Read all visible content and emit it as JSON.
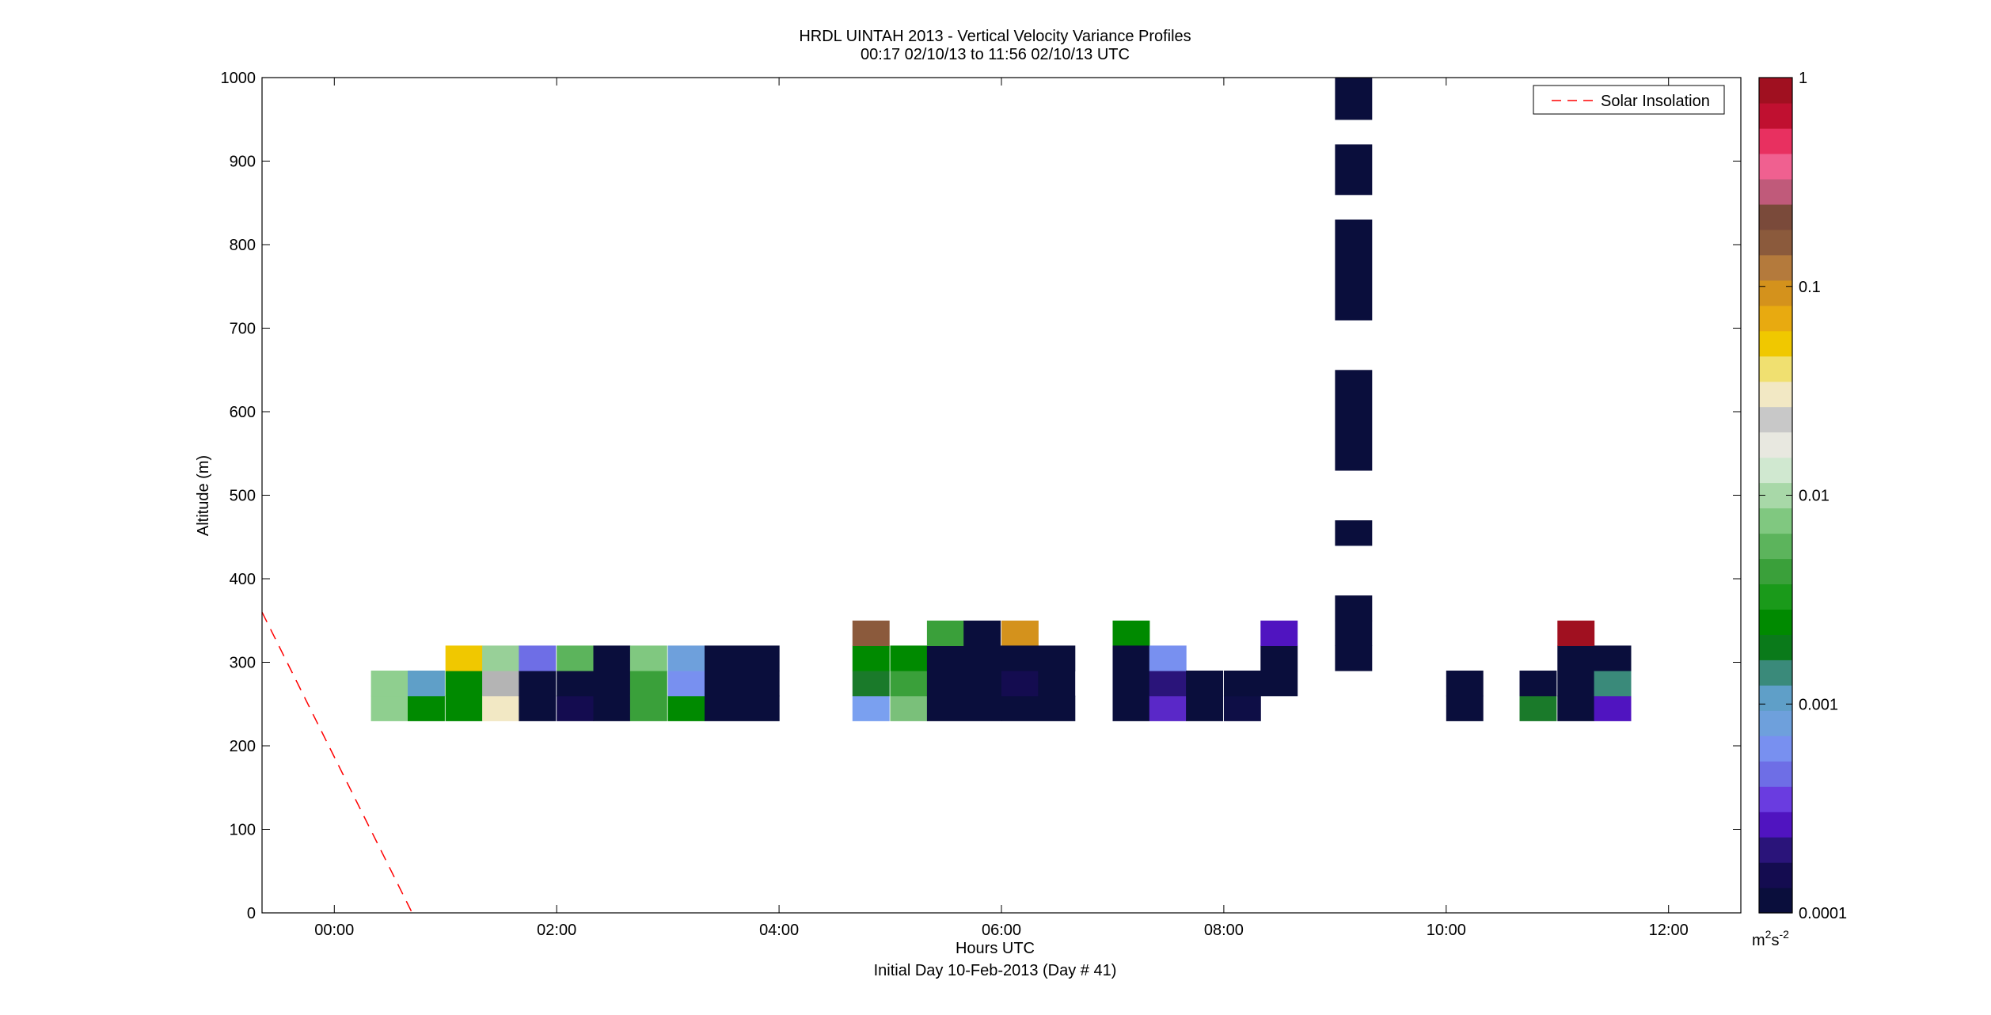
{
  "chart_data": {
    "type": "heatmap",
    "title": "HRDL UINTAH 2013 - Vertical Velocity Variance Profiles",
    "subtitle": "00:17 02/10/13 to 11:56 02/10/13  UTC",
    "xlabel": "Hours UTC",
    "xlabel2": "Initial Day 10-Feb-2013 (Day # 41)",
    "ylabel": "Altitude (m)",
    "xlim": [
      -0.65,
      12.65
    ],
    "ylim": [
      0,
      1000
    ],
    "x_ticks": [
      0,
      2,
      4,
      6,
      8,
      10,
      12
    ],
    "x_tick_labels": [
      "00:00",
      "02:00",
      "04:00",
      "06:00",
      "08:00",
      "10:00",
      "12:00"
    ],
    "y_ticks": [
      0,
      100,
      200,
      300,
      400,
      500,
      600,
      700,
      800,
      900,
      1000
    ],
    "y_tick_labels": [
      "0",
      "100",
      "200",
      "300",
      "400",
      "500",
      "600",
      "700",
      "800",
      "900",
      "1000"
    ],
    "colorbar": {
      "scale": "log",
      "range": [
        0.0001,
        1
      ],
      "ticks": [
        0.0001,
        0.001,
        0.01,
        0.1,
        1
      ],
      "tick_labels": [
        "0.0001",
        "0.001",
        "0.01",
        "0.1",
        "1"
      ],
      "units_main": "m",
      "units_sup1": "2",
      "units_mid": "s",
      "units_sup2": "-2"
    },
    "legend": {
      "position": "top-right",
      "entries": [
        {
          "label": "Solar Insolation",
          "color": "#ff0000",
          "style": "dashed"
        }
      ]
    },
    "solar_insolation_line": {
      "x": [
        -0.65,
        0.7
      ],
      "y": [
        360,
        0
      ]
    },
    "cell_height_m": 30,
    "cells": [
      {
        "x": 0.33,
        "y": 230,
        "w": 0.33,
        "color": "#8fcf8f"
      },
      {
        "x": 0.33,
        "y": 260,
        "w": 0.33,
        "color": "#8fcf8f"
      },
      {
        "x": 0.66,
        "y": 230,
        "w": 0.33,
        "color": "#008a00"
      },
      {
        "x": 0.66,
        "y": 260,
        "w": 0.33,
        "color": "#5f9fc8"
      },
      {
        "x": 1.0,
        "y": 230,
        "w": 0.33,
        "color": "#008a00"
      },
      {
        "x": 1.0,
        "y": 260,
        "w": 0.33,
        "color": "#008a00"
      },
      {
        "x": 1.0,
        "y": 290,
        "w": 0.33,
        "color": "#f0c800"
      },
      {
        "x": 1.33,
        "y": 230,
        "w": 0.33,
        "color": "#f2e8c4"
      },
      {
        "x": 1.33,
        "y": 260,
        "w": 0.33,
        "color": "#b4b4b4"
      },
      {
        "x": 1.33,
        "y": 290,
        "w": 0.33,
        "color": "#98d098"
      },
      {
        "x": 1.66,
        "y": 230,
        "w": 0.33,
        "color": "#0a0e3c"
      },
      {
        "x": 1.66,
        "y": 260,
        "w": 0.33,
        "color": "#0a0e3c"
      },
      {
        "x": 1.66,
        "y": 290,
        "w": 0.33,
        "color": "#6e6ee6"
      },
      {
        "x": 2.0,
        "y": 230,
        "w": 0.33,
        "color": "#140c50"
      },
      {
        "x": 2.0,
        "y": 260,
        "w": 0.33,
        "color": "#0a0e3c"
      },
      {
        "x": 2.0,
        "y": 290,
        "w": 0.33,
        "color": "#5cb45c"
      },
      {
        "x": 2.33,
        "y": 230,
        "w": 0.33,
        "color": "#0a0e3c"
      },
      {
        "x": 2.33,
        "y": 260,
        "w": 0.33,
        "color": "#0a0e3c"
      },
      {
        "x": 2.33,
        "y": 290,
        "w": 0.33,
        "color": "#0a0e3c"
      },
      {
        "x": 2.66,
        "y": 230,
        "w": 0.33,
        "color": "#3aa03a"
      },
      {
        "x": 2.66,
        "y": 260,
        "w": 0.33,
        "color": "#3aa03a"
      },
      {
        "x": 2.66,
        "y": 290,
        "w": 0.33,
        "color": "#80c880"
      },
      {
        "x": 3.0,
        "y": 230,
        "w": 0.33,
        "color": "#008a00"
      },
      {
        "x": 3.0,
        "y": 260,
        "w": 0.33,
        "color": "#7890f0"
      },
      {
        "x": 3.0,
        "y": 290,
        "w": 0.33,
        "color": "#6ea0dc"
      },
      {
        "x": 3.33,
        "y": 230,
        "w": 0.67,
        "color": "#0a0e3c"
      },
      {
        "x": 3.33,
        "y": 260,
        "w": 0.67,
        "color": "#0a0e3c"
      },
      {
        "x": 3.33,
        "y": 290,
        "w": 0.67,
        "color": "#0a0e3c"
      },
      {
        "x": 4.66,
        "y": 230,
        "w": 0.33,
        "color": "#7aa0f0"
      },
      {
        "x": 4.66,
        "y": 260,
        "w": 0.33,
        "color": "#1a7a2a"
      },
      {
        "x": 4.66,
        "y": 290,
        "w": 0.33,
        "color": "#008a00"
      },
      {
        "x": 4.66,
        "y": 320,
        "w": 0.33,
        "color": "#8b5a3c"
      },
      {
        "x": 5.0,
        "y": 230,
        "w": 0.33,
        "color": "#7ac07a"
      },
      {
        "x": 5.0,
        "y": 260,
        "w": 0.33,
        "color": "#3aa03a"
      },
      {
        "x": 5.0,
        "y": 290,
        "w": 0.33,
        "color": "#008a00"
      },
      {
        "x": 5.33,
        "y": 230,
        "w": 0.67,
        "color": "#0a0e3c"
      },
      {
        "x": 5.33,
        "y": 260,
        "w": 0.67,
        "color": "#0a0e3c"
      },
      {
        "x": 5.33,
        "y": 290,
        "w": 0.67,
        "color": "#0a0e3c"
      },
      {
        "x": 5.33,
        "y": 320,
        "w": 0.33,
        "color": "#3aa03a"
      },
      {
        "x": 5.66,
        "y": 320,
        "w": 0.33,
        "color": "#0a0e3c"
      },
      {
        "x": 6.0,
        "y": 320,
        "w": 0.33,
        "color": "#d4921c"
      },
      {
        "x": 6.0,
        "y": 230,
        "w": 0.66,
        "color": "#0a0e3c"
      },
      {
        "x": 6.0,
        "y": 260,
        "w": 0.33,
        "color": "#140c50"
      },
      {
        "x": 6.33,
        "y": 260,
        "w": 0.33,
        "color": "#0a0e3c"
      },
      {
        "x": 6.0,
        "y": 290,
        "w": 0.66,
        "color": "#0a0e3c"
      },
      {
        "x": 7.0,
        "y": 320,
        "w": 0.33,
        "color": "#008a00"
      },
      {
        "x": 7.0,
        "y": 230,
        "w": 0.33,
        "color": "#0a0e3c"
      },
      {
        "x": 7.0,
        "y": 260,
        "w": 0.33,
        "color": "#0a0e3c"
      },
      {
        "x": 7.0,
        "y": 290,
        "w": 0.33,
        "color": "#0a0e3c"
      },
      {
        "x": 7.33,
        "y": 230,
        "w": 0.33,
        "color": "#5a28c8"
      },
      {
        "x": 7.33,
        "y": 260,
        "w": 0.33,
        "color": "#2a147a"
      },
      {
        "x": 7.33,
        "y": 290,
        "w": 0.33,
        "color": "#7890f0"
      },
      {
        "x": 7.66,
        "y": 230,
        "w": 0.33,
        "color": "#0a0e3c"
      },
      {
        "x": 7.66,
        "y": 260,
        "w": 0.33,
        "color": "#0a0e3c"
      },
      {
        "x": 8.0,
        "y": 230,
        "w": 0.33,
        "color": "#0e0e46"
      },
      {
        "x": 8.0,
        "y": 260,
        "w": 0.33,
        "color": "#0a0e3c"
      },
      {
        "x": 8.33,
        "y": 260,
        "w": 0.33,
        "color": "#0a0e3c"
      },
      {
        "x": 8.33,
        "y": 290,
        "w": 0.33,
        "color": "#0a0e3c"
      },
      {
        "x": 8.33,
        "y": 320,
        "w": 0.33,
        "color": "#5014c0"
      },
      {
        "x": 9.0,
        "y": 290,
        "w": 0.33,
        "color": "#0a0e3c"
      },
      {
        "x": 9.0,
        "y": 320,
        "w": 0.33,
        "color": "#0a0e3c"
      },
      {
        "x": 9.0,
        "y": 350,
        "w": 0.33,
        "color": "#0a0e3c"
      },
      {
        "x": 9.0,
        "y": 440,
        "w": 0.33,
        "color": "#0a0e3c",
        "h": 30
      },
      {
        "x": 9.0,
        "y": 530,
        "w": 0.33,
        "color": "#0a0e3c",
        "h": 120
      },
      {
        "x": 9.0,
        "y": 710,
        "w": 0.33,
        "color": "#0a0e3c",
        "h": 120
      },
      {
        "x": 9.0,
        "y": 860,
        "w": 0.33,
        "color": "#0a0e3c",
        "h": 60
      },
      {
        "x": 9.0,
        "y": 950,
        "w": 0.33,
        "color": "#0a0e3c",
        "h": 50
      },
      {
        "x": 10.0,
        "y": 230,
        "w": 0.33,
        "color": "#0a0e3c"
      },
      {
        "x": 10.0,
        "y": 260,
        "w": 0.33,
        "color": "#0a0e3c"
      },
      {
        "x": 10.66,
        "y": 230,
        "w": 0.33,
        "color": "#1a7a2a"
      },
      {
        "x": 10.66,
        "y": 260,
        "w": 0.33,
        "color": "#0a0e3c"
      },
      {
        "x": 11.0,
        "y": 230,
        "w": 0.33,
        "color": "#0a0e3c"
      },
      {
        "x": 11.0,
        "y": 260,
        "w": 0.33,
        "color": "#0a0e3c"
      },
      {
        "x": 11.0,
        "y": 290,
        "w": 0.33,
        "color": "#0a0e3c"
      },
      {
        "x": 11.0,
        "y": 320,
        "w": 0.33,
        "color": "#a01020"
      },
      {
        "x": 11.33,
        "y": 230,
        "w": 0.33,
        "color": "#5014c0"
      },
      {
        "x": 11.33,
        "y": 260,
        "w": 0.33,
        "color": "#3a8a7a"
      },
      {
        "x": 11.33,
        "y": 290,
        "w": 0.33,
        "color": "#0a0e3c"
      }
    ],
    "colorscale": [
      "#0a0e3c",
      "#140c50",
      "#2a147a",
      "#5014c0",
      "#6a3ce0",
      "#6e6ee6",
      "#7890f0",
      "#6ea0dc",
      "#5f9fc8",
      "#3a8a7a",
      "#0a7a1a",
      "#008a00",
      "#1a9a1a",
      "#3aa03a",
      "#5cb45c",
      "#80c880",
      "#a8d8a8",
      "#d0e8d0",
      "#e8e8e0",
      "#c8c8c8",
      "#f2e8c4",
      "#f0e070",
      "#f0c800",
      "#e8aa10",
      "#d4921c",
      "#b47a3c",
      "#8b5a3c",
      "#7a4a3a",
      "#c05a7a",
      "#f06090",
      "#e83060",
      "#c01030",
      "#a01020"
    ]
  }
}
